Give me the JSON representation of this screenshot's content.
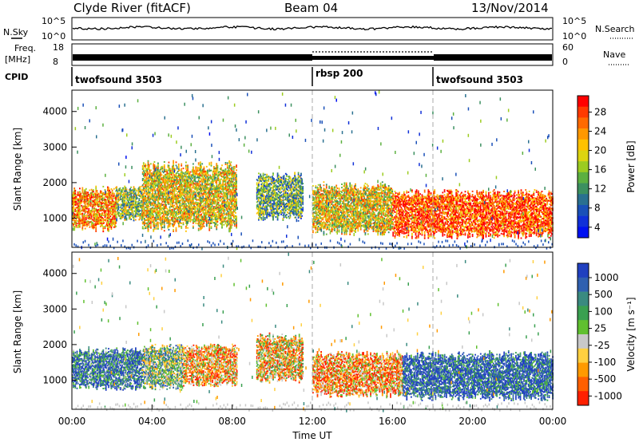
{
  "header": {
    "station": "Clyde River (fitACF)",
    "beam": "Beam 04",
    "date": "13/Nov/2014"
  },
  "noise_panel": {
    "left_label": "N.Sky",
    "left_ticks": [
      "10^5",
      "10^0"
    ],
    "right_ticks": [
      "10^5",
      "10^0"
    ],
    "right_label": "N.Search"
  },
  "freq_panel": {
    "left_label_1": "Freq.",
    "left_label_2": "[MHz]",
    "left_ticks": [
      "18",
      "8"
    ],
    "right_ticks": [
      "60",
      "0"
    ],
    "right_label": "Nave"
  },
  "cpid": {
    "label": "CPID",
    "modes": [
      {
        "name": "twofsound 3503",
        "start_hour": 0
      },
      {
        "name": "rbsp 200",
        "start_hour": 12
      },
      {
        "name": "twofsound 3503",
        "start_hour": 18
      }
    ]
  },
  "power_colorbar": {
    "label": "Power [dB]",
    "ticks": [
      "28",
      "24",
      "20",
      "16",
      "12",
      "8",
      "4"
    ],
    "colors": [
      "#ff0000",
      "#ff3a00",
      "#ff6a00",
      "#ff9800",
      "#ffc200",
      "#dcd410",
      "#9ccc20",
      "#5cb040",
      "#3c9060",
      "#2a7090",
      "#1a50b8",
      "#1030d8",
      "#0010f0"
    ]
  },
  "velocity_colorbar": {
    "label": "Velocity [m s⁻¹]",
    "ticks": [
      "1000",
      "500",
      "100",
      "25",
      "-25",
      "-100",
      "-500",
      "-1000"
    ],
    "colors": [
      "#2040c0",
      "#3060b0",
      "#3a8a80",
      "#3aa050",
      "#60c030",
      "#c8c8c8",
      "#ffd040",
      "#ff9a00",
      "#ff6000",
      "#ff2000"
    ]
  },
  "axes": {
    "ylabel": "Slant Range [km]",
    "xlabel": "Time UT",
    "x_ticks": [
      "00:00",
      "04:00",
      "08:00",
      "12:00",
      "16:00",
      "20:00",
      "00:00"
    ],
    "y_ticks": [
      "4000",
      "3000",
      "2000",
      "1000"
    ]
  },
  "chart_data": [
    {
      "type": "heatmap",
      "title": "",
      "panel": "power",
      "xlabel": "Time UT",
      "ylabel": "Slant Range [km]",
      "xlim_hours": [
        0,
        24
      ],
      "ylim_km": [
        180,
        4600
      ],
      "colorbar_label": "Power [dB]",
      "colorbar_range": [
        0,
        30
      ],
      "echo_regions": [
        {
          "t_start": 0.0,
          "t_end": 2.2,
          "r_low": 600,
          "r_high": 1900,
          "mean_db": 22
        },
        {
          "t_start": 2.2,
          "t_end": 3.5,
          "r_low": 900,
          "r_high": 1900,
          "mean_db": 14
        },
        {
          "t_start": 3.5,
          "t_end": 8.2,
          "r_low": 600,
          "r_high": 2600,
          "mean_db": 18
        },
        {
          "t_start": 9.2,
          "t_end": 11.5,
          "r_low": 900,
          "r_high": 2300,
          "mean_db": 12
        },
        {
          "t_start": 12.0,
          "t_end": 16.0,
          "r_low": 500,
          "r_high": 2000,
          "mean_db": 18
        },
        {
          "t_start": 16.0,
          "t_end": 24.0,
          "r_low": 400,
          "r_high": 1800,
          "mean_db": 26
        }
      ]
    },
    {
      "type": "heatmap",
      "title": "",
      "panel": "velocity",
      "xlabel": "Time UT",
      "ylabel": "Slant Range [km]",
      "xlim_hours": [
        0,
        24
      ],
      "ylim_km": [
        180,
        4600
      ],
      "colorbar_label": "Velocity [m s⁻¹]",
      "colorbar_range": [
        -1000,
        1000
      ],
      "echo_regions": [
        {
          "t_start": 0.0,
          "t_end": 3.5,
          "r_low": 700,
          "r_high": 1900,
          "mean_ms": 600
        },
        {
          "t_start": 3.5,
          "t_end": 5.5,
          "r_low": 700,
          "r_high": 2000,
          "mean_ms": 150
        },
        {
          "t_start": 5.5,
          "t_end": 8.2,
          "r_low": 800,
          "r_high": 2000,
          "mean_ms": -400
        },
        {
          "t_start": 9.2,
          "t_end": 11.5,
          "r_low": 900,
          "r_high": 2300,
          "mean_ms": -300
        },
        {
          "t_start": 12.0,
          "t_end": 16.5,
          "r_low": 500,
          "r_high": 1800,
          "mean_ms": -500
        },
        {
          "t_start": 16.5,
          "t_end": 24.0,
          "r_low": 400,
          "r_high": 1800,
          "mean_ms": 800
        }
      ]
    }
  ]
}
